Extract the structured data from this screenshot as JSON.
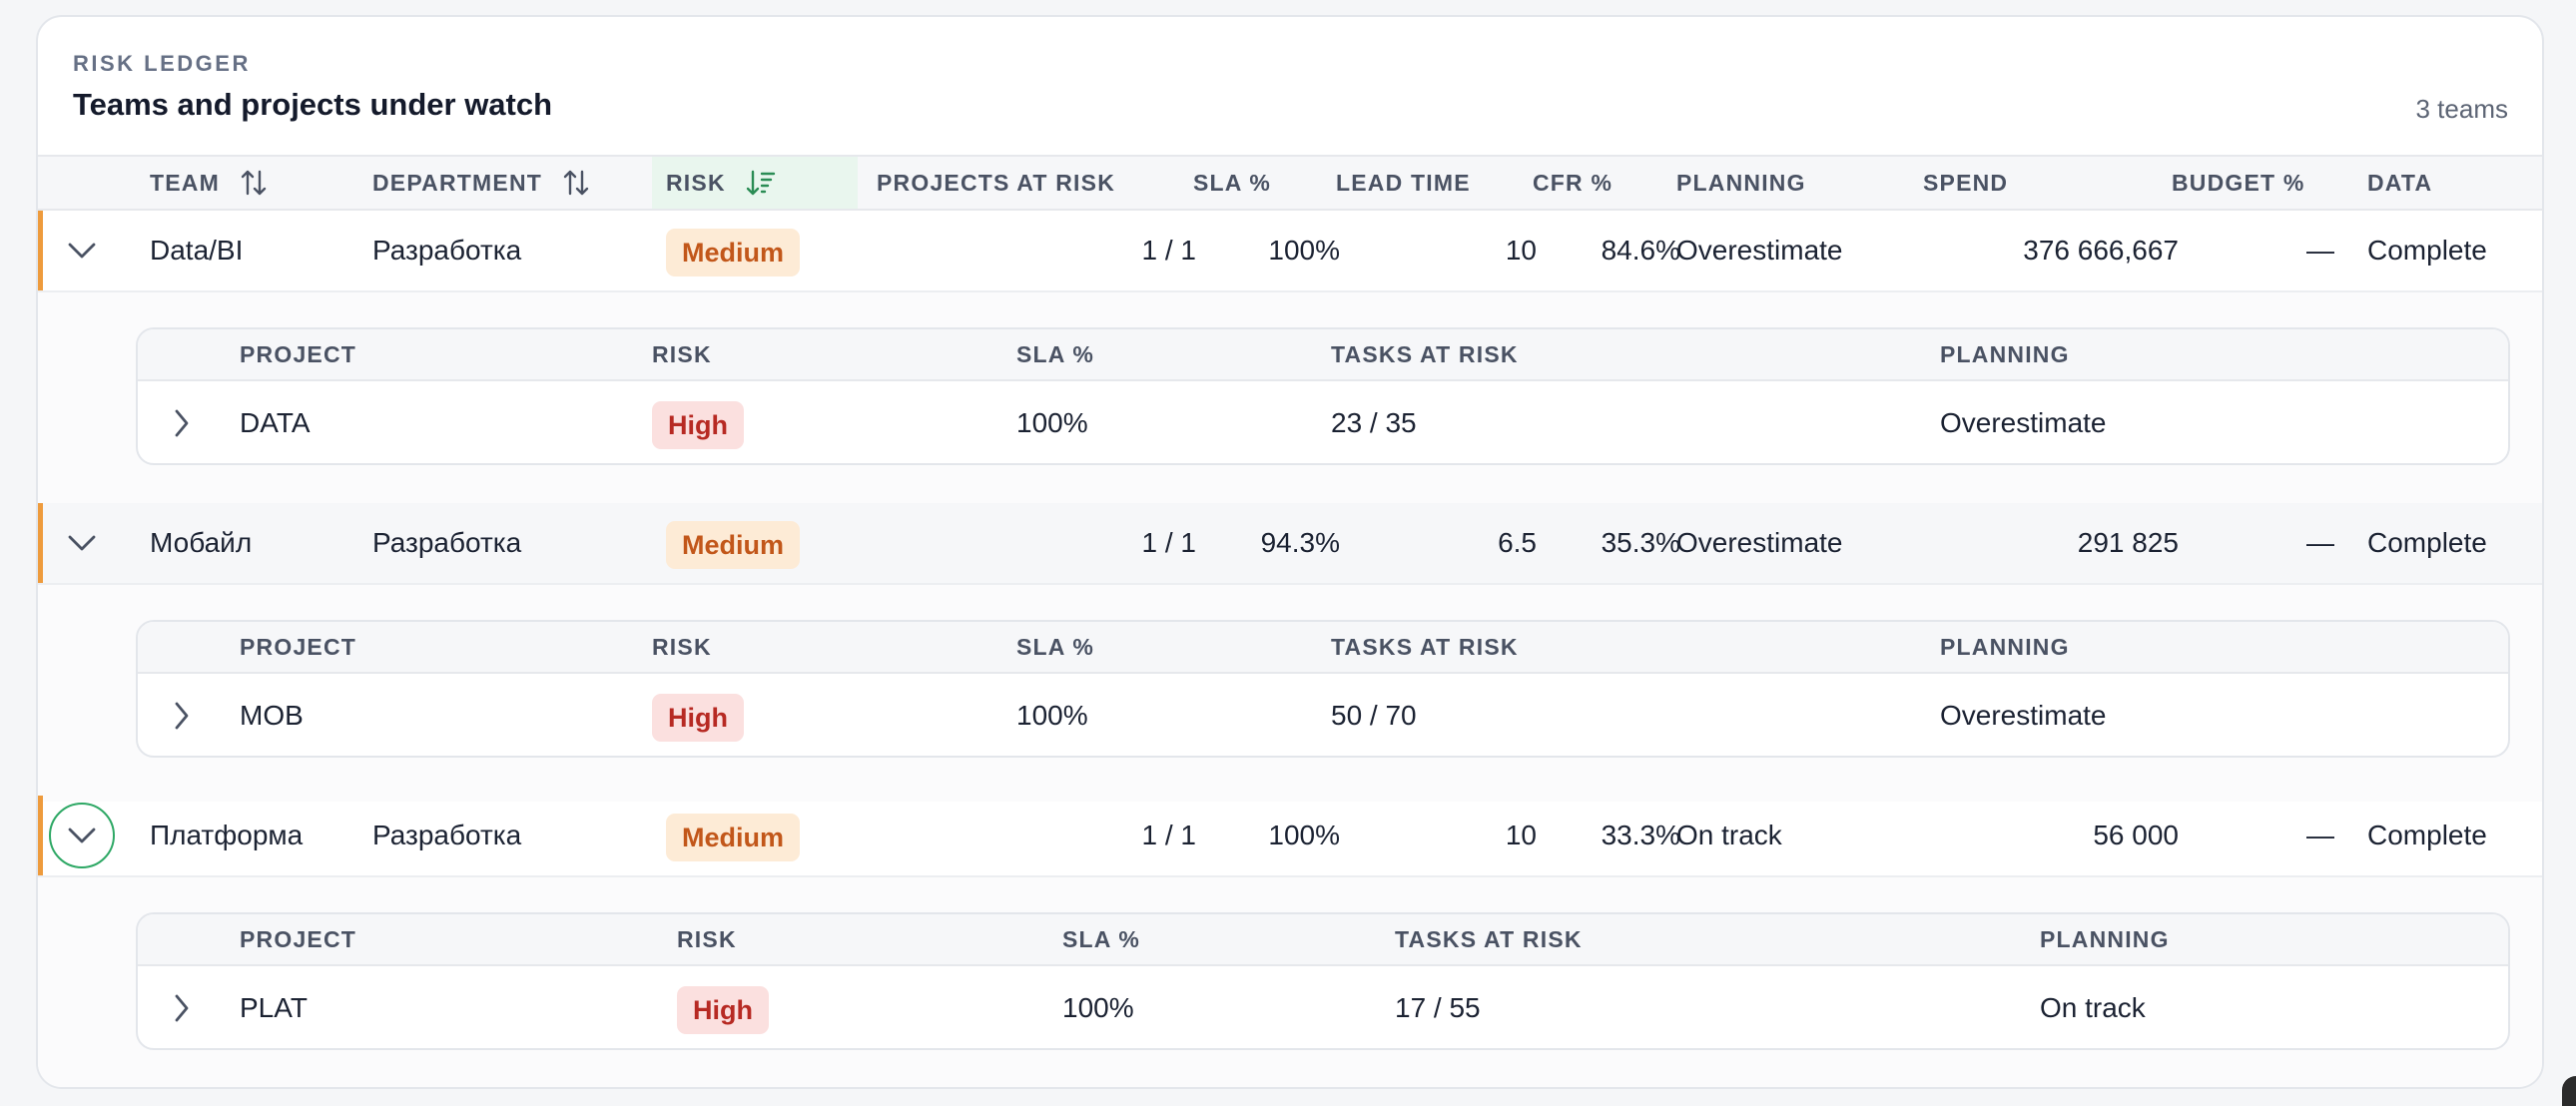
{
  "header": {
    "eyebrow": "RISK LEDGER",
    "title": "Teams and projects under watch",
    "count": "3 teams"
  },
  "columns": {
    "team": "TEAM",
    "department": "DEPARTMENT",
    "risk": "RISK",
    "projects_at_risk": "PROJECTS AT RISK",
    "sla": "SLA %",
    "lead_time": "LEAD TIME",
    "cfr": "CFR %",
    "planning": "PLANNING",
    "spend": "SPEND",
    "budget": "BUDGET %",
    "data": "DATA"
  },
  "sub_columns": {
    "project": "PROJECT",
    "risk": "RISK",
    "sla": "SLA %",
    "tasks_at_risk": "TASKS AT RISK",
    "planning": "PLANNING"
  },
  "teams": [
    {
      "team": "Data/BI",
      "department": "Разработка",
      "risk": "Medium",
      "projects_at_risk": "1 / 1",
      "sla": "100%",
      "lead_time": "10",
      "cfr": "84.6%",
      "planning": "Overestimate",
      "spend": "376 666,667",
      "budget": "—",
      "data": "Complete",
      "project": {
        "name": "DATA",
        "risk": "High",
        "sla": "100%",
        "tasks_at_risk": "23 / 35",
        "planning": "Overestimate"
      }
    },
    {
      "team": "Мобайл",
      "department": "Разработка",
      "risk": "Medium",
      "projects_at_risk": "1 / 1",
      "sla": "94.3%",
      "lead_time": "6.5",
      "cfr": "35.3%",
      "planning": "Overestimate",
      "spend": "291 825",
      "budget": "—",
      "data": "Complete",
      "project": {
        "name": "MOB",
        "risk": "High",
        "sla": "100%",
        "tasks_at_risk": "50 / 70",
        "planning": "Overestimate"
      }
    },
    {
      "team": "Платформа",
      "department": "Разработка",
      "risk": "Medium",
      "projects_at_risk": "1 / 1",
      "sla": "100%",
      "lead_time": "10",
      "cfr": "33.3%",
      "planning": "On track",
      "spend": "56 000",
      "budget": "—",
      "data": "Complete",
      "project": {
        "name": "PLAT",
        "risk": "High",
        "sla": "100%",
        "tasks_at_risk": "17 / 55",
        "planning": "On track"
      }
    }
  ],
  "colors": {
    "accent": "#ee9b3d",
    "sorted_header_bg": "#e9f6ee",
    "focus_ring": "#2ea865",
    "medium_badge_bg": "#fdebd6",
    "medium_badge_text": "#c2571a",
    "high_badge_bg": "#fbe0df",
    "high_badge_text": "#b72a23"
  },
  "icons": {
    "sort_default": "sort-arrows-icon",
    "sort_active": "sort-descending-icon",
    "expanded": "chevron-down-icon",
    "collapsed": "chevron-right-icon"
  }
}
